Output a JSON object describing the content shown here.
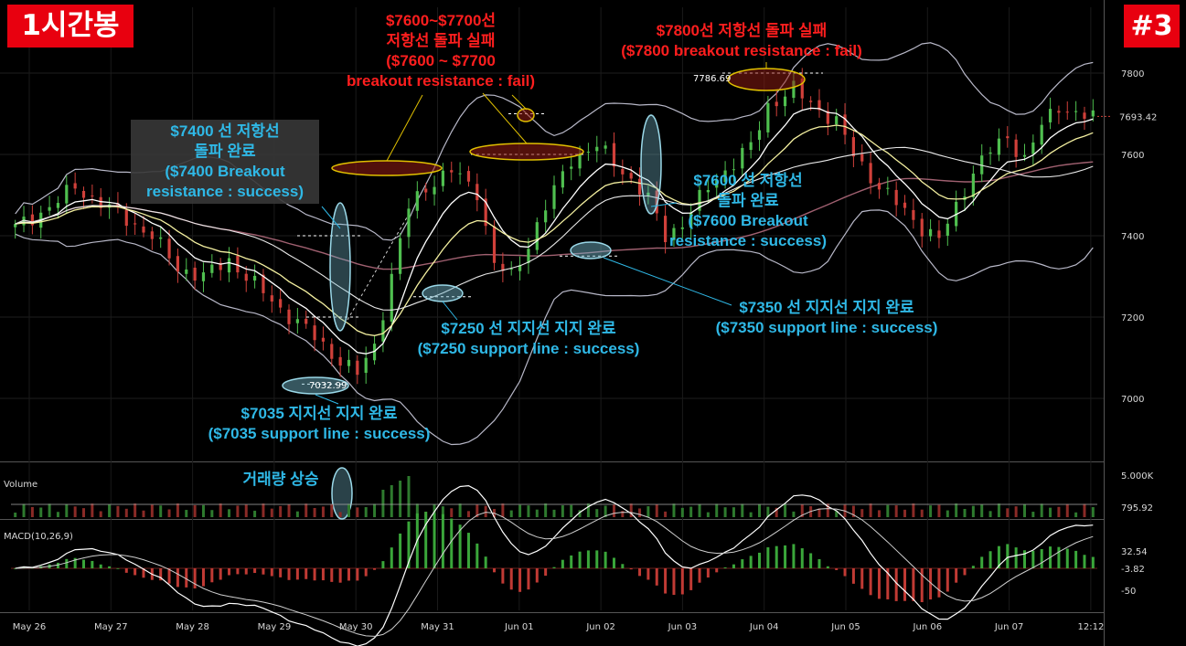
{
  "badges": {
    "timeframe": "1시간봉",
    "number": "#3"
  },
  "colors": {
    "background": "#000000",
    "candle_up": "#4fbf4f",
    "candle_down": "#d0403a",
    "bollinger": "#b8b8c8",
    "ma_white": "#ffffff",
    "ma_yellow": "#f4f0a0",
    "ma_long": "#a06070",
    "annotation_red": "#ff1e1e",
    "annotation_cyan": "#2fb8e6",
    "badge": "#e8000f"
  },
  "annotations": {
    "res_7400": [
      "$7400 선 저항선",
      "돌파 완료",
      "($7400 Breakout",
      "resistance : success)"
    ],
    "res_7600_7700": [
      "$7600~$7700선",
      "저항선 돌파 실패",
      "($7600 ~ $7700",
      "breakout resistance : fail)"
    ],
    "res_7800": [
      "$7800선 저항선 돌파 실패",
      "($7800 breakout resistance : fail)"
    ],
    "res_7600": [
      "$7600 선 저항선",
      "돌파 완료",
      "($7600 Breakout",
      "resistance : success)"
    ],
    "sup_7250": [
      "$7250 선 지지선 지지 완료",
      "($7250 support line : success)"
    ],
    "sup_7350": [
      "$7350 선 지지선 지지 완료",
      "($7350 support line : success)"
    ],
    "sup_7035": [
      "$7035  지지선 지지 완료",
      "($7035 support line : success)"
    ],
    "volume_up": "거래량 상승"
  },
  "chart_data": {
    "type": "candlestick",
    "title": "",
    "x_ticks": [
      "May 26",
      "May 27",
      "May 28",
      "May 29",
      "May 30",
      "May 31",
      "Jun 01",
      "Jun 02",
      "Jun 03",
      "Jun 04",
      "Jun 05",
      "Jun 06",
      "Jun 07",
      "12:12"
    ],
    "price_axis": {
      "ticks": [
        "7800",
        "7600",
        "7400",
        "7200",
        "7000"
      ],
      "ylim": [
        6900,
        7900
      ]
    },
    "price_keypoints": [
      [
        0,
        7420
      ],
      [
        4,
        7470
      ],
      [
        7,
        7520
      ],
      [
        10,
        7480
      ],
      [
        13,
        7440
      ],
      [
        16,
        7400
      ],
      [
        19,
        7320
      ],
      [
        22,
        7300
      ],
      [
        25,
        7340
      ],
      [
        28,
        7280
      ],
      [
        31,
        7220
      ],
      [
        34,
        7170
      ],
      [
        37,
        7110
      ],
      [
        40,
        7060
      ],
      [
        42,
        7130
      ],
      [
        44,
        7300
      ],
      [
        46,
        7470
      ],
      [
        48,
        7520
      ],
      [
        51,
        7560
      ],
      [
        54,
        7510
      ],
      [
        56,
        7330
      ],
      [
        58,
        7300
      ],
      [
        60,
        7380
      ],
      [
        62,
        7470
      ],
      [
        65,
        7590
      ],
      [
        68,
        7620
      ],
      [
        71,
        7560
      ],
      [
        74,
        7490
      ],
      [
        76,
        7400
      ],
      [
        78,
        7430
      ],
      [
        81,
        7520
      ],
      [
        84,
        7580
      ],
      [
        86,
        7620
      ],
      [
        88,
        7720
      ],
      [
        91,
        7760
      ],
      [
        94,
        7710
      ],
      [
        96,
        7680
      ],
      [
        98,
        7600
      ],
      [
        101,
        7520
      ],
      [
        104,
        7460
      ],
      [
        106,
        7420
      ],
      [
        108,
        7390
      ],
      [
        110,
        7470
      ],
      [
        112,
        7560
      ],
      [
        114,
        7610
      ],
      [
        116,
        7640
      ],
      [
        118,
        7590
      ],
      [
        120,
        7670
      ],
      [
        122,
        7720
      ],
      [
        124,
        7700
      ],
      [
        126,
        7690
      ]
    ],
    "price_labels": {
      "high": "7786.69",
      "low": "7032.99",
      "last": "7693.42"
    },
    "volume_panel": {
      "label": "Volume",
      "ticks": [
        "5.000K"
      ],
      "last": "795.92"
    },
    "macd_panel": {
      "label": "MACD(10,26,9)",
      "ticks": [
        "-50"
      ],
      "macd_last": "32.54",
      "signal_last": "-3.82"
    },
    "support_levels": [
      7035,
      7250,
      7350
    ],
    "resistance_levels": [
      7400,
      7600,
      7700,
      7800
    ]
  }
}
